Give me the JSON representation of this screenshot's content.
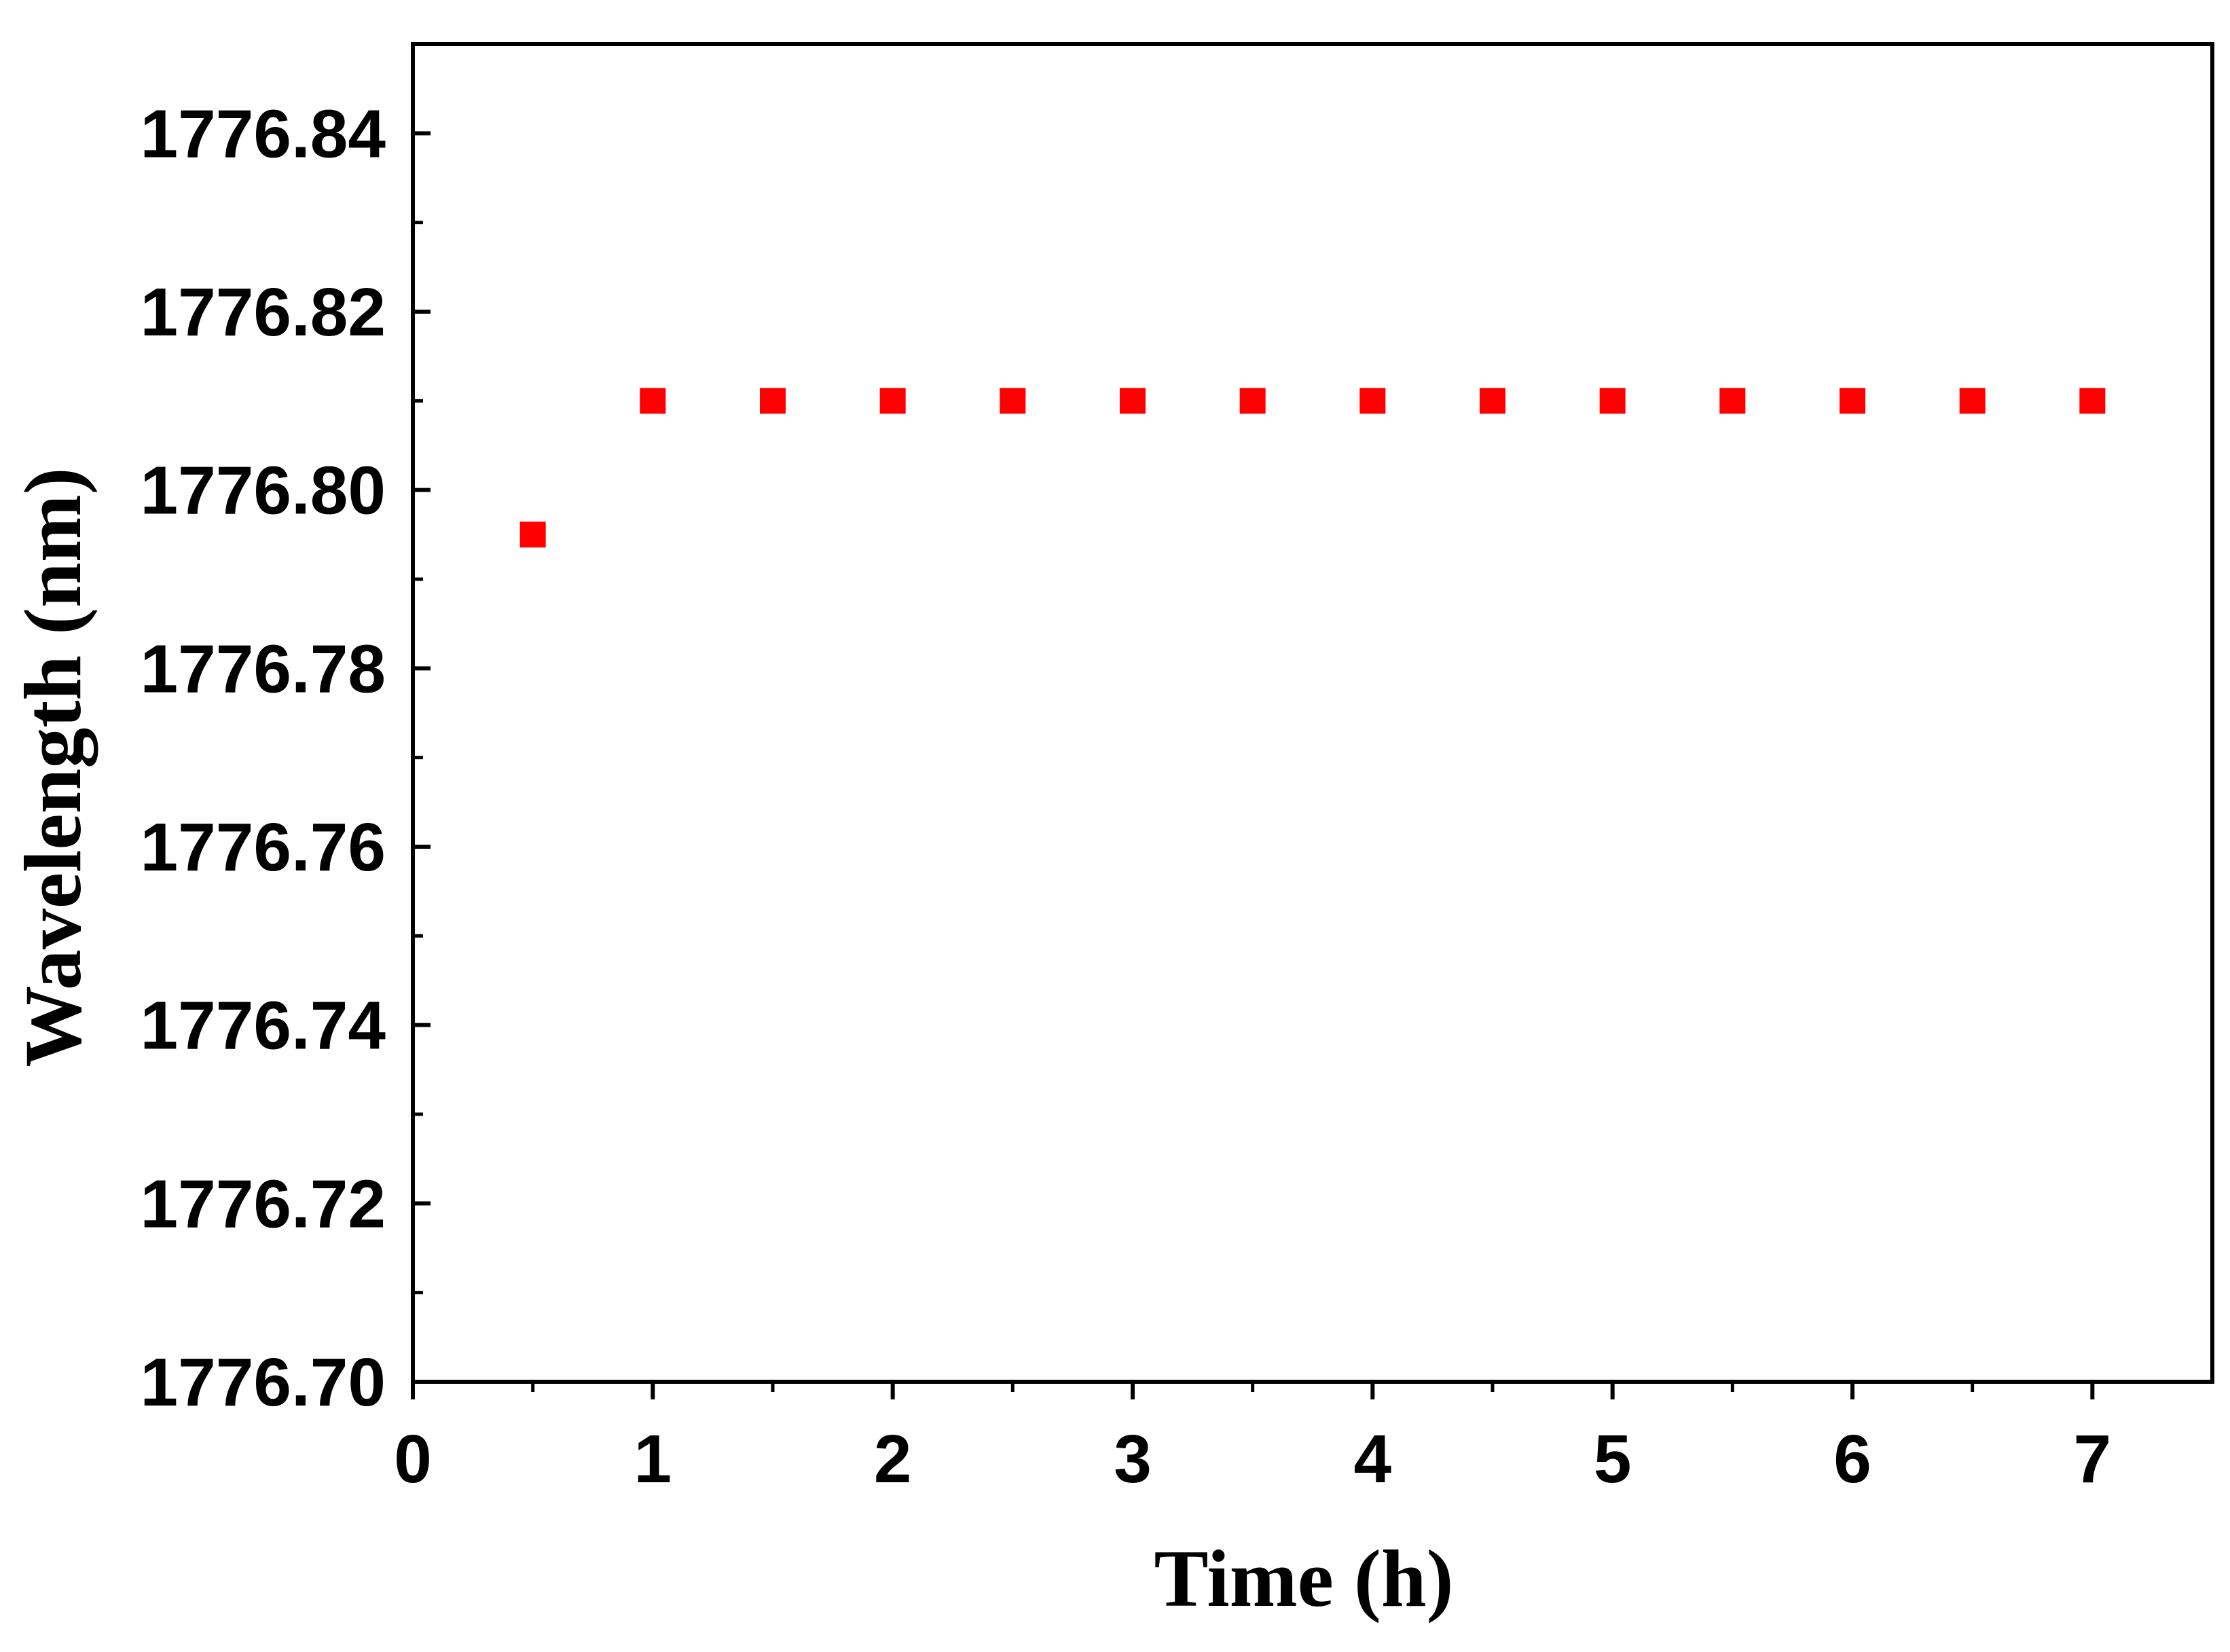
{
  "chart_data": {
    "type": "scatter",
    "title": "",
    "xlabel": "Time (h)",
    "ylabel": "Wavelength (nm)",
    "xlim": [
      0,
      7.5
    ],
    "ylim": [
      1776.7,
      1776.85
    ],
    "x_ticks": [
      0,
      1,
      2,
      3,
      4,
      5,
      6,
      7
    ],
    "x_tick_labels": [
      "0",
      "1",
      "2",
      "3",
      "4",
      "5",
      "6",
      "7"
    ],
    "y_ticks": [
      1776.7,
      1776.72,
      1776.74,
      1776.76,
      1776.78,
      1776.8,
      1776.82,
      1776.84
    ],
    "y_tick_labels": [
      "1776.70",
      "1776.72",
      "1776.74",
      "1776.76",
      "1776.78",
      "1776.80",
      "1776.82",
      "1776.84"
    ],
    "grid": false,
    "legend": "none",
    "marker": "square",
    "marker_color": "#ff0000",
    "series": [
      {
        "x": [
          0.5,
          1.0,
          1.5,
          2.0,
          2.5,
          3.0,
          3.5,
          4.0,
          4.5,
          5.0,
          5.5,
          6.0,
          6.5,
          7.0
        ],
        "y": [
          1776.795,
          1776.81,
          1776.81,
          1776.81,
          1776.81,
          1776.81,
          1776.81,
          1776.81,
          1776.81,
          1776.81,
          1776.81,
          1776.81,
          1776.81,
          1776.81
        ]
      }
    ]
  }
}
